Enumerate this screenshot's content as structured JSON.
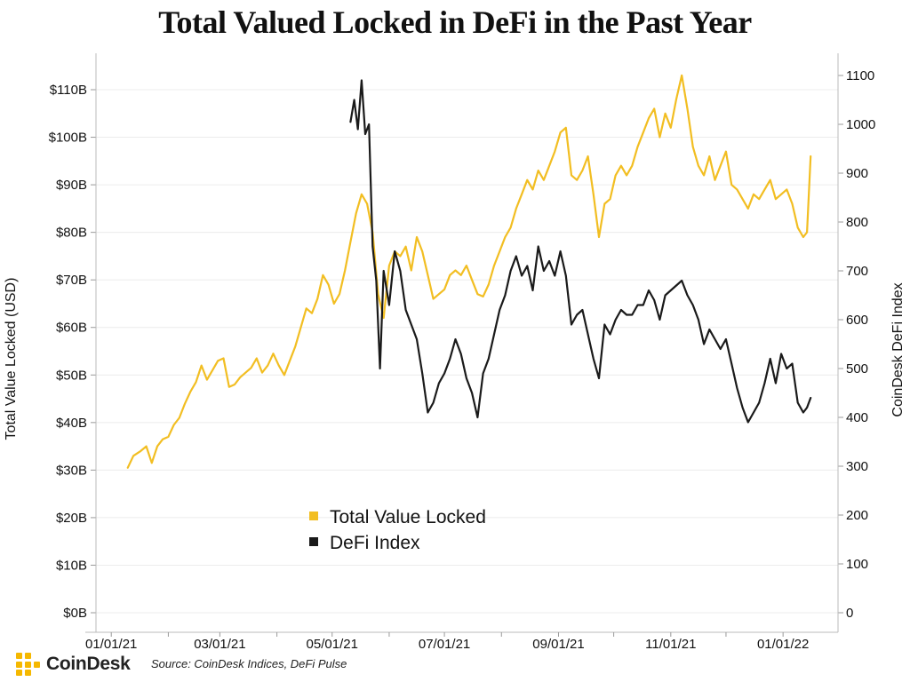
{
  "title": "Total Valued Locked in DeFi in the Past Year",
  "source": "Source: CoinDesk Indices, DeFi Pulse",
  "brand": {
    "name": "CoinDesk",
    "icon": "coindesk-logo-icon",
    "color": "#F5B800"
  },
  "chart_data": {
    "type": "line",
    "title": "Total Valued Locked in DeFi in the Past Year",
    "ylabel": "Total Value Locked (USD)",
    "y2label": "CoinDesk DeFi Index",
    "xlim": [
      "2020-12-15",
      "2022-01-27"
    ],
    "ylim": [
      0,
      110
    ],
    "y2lim": [
      0,
      1100
    ],
    "x_ticks": [
      "01/01/21",
      "03/01/21",
      "05/01/21",
      "07/01/21",
      "09/01/21",
      "11/01/21",
      "01/01/22"
    ],
    "y_ticks": [
      "$0B",
      "$10B",
      "$20B",
      "$30B",
      "$40B",
      "$50B",
      "$60B",
      "$70B",
      "$80B",
      "$90B",
      "$100B",
      "$110B"
    ],
    "y2_ticks": [
      "0",
      "100",
      "200",
      "300",
      "400",
      "500",
      "600",
      "700",
      "800",
      "900",
      "1000",
      "1100"
    ],
    "grid": "horizontal",
    "legend_position": "center",
    "series": [
      {
        "name": "Total Value Locked",
        "axis": "left",
        "color": "#F2BE22",
        "points": [
          [
            "2021-01-10",
            30.5
          ],
          [
            "2021-01-13",
            33
          ],
          [
            "2021-01-17",
            34
          ],
          [
            "2021-01-20",
            35
          ],
          [
            "2021-01-23",
            31.5
          ],
          [
            "2021-01-26",
            35
          ],
          [
            "2021-01-29",
            36.5
          ],
          [
            "2021-02-01",
            37
          ],
          [
            "2021-02-04",
            39.5
          ],
          [
            "2021-02-07",
            41
          ],
          [
            "2021-02-10",
            44
          ],
          [
            "2021-02-13",
            46.5
          ],
          [
            "2021-02-16",
            48.5
          ],
          [
            "2021-02-19",
            52
          ],
          [
            "2021-02-22",
            49
          ],
          [
            "2021-02-25",
            51
          ],
          [
            "2021-02-28",
            53
          ],
          [
            "2021-03-03",
            53.5
          ],
          [
            "2021-03-06",
            47.5
          ],
          [
            "2021-03-09",
            48
          ],
          [
            "2021-03-12",
            49.5
          ],
          [
            "2021-03-15",
            50.5
          ],
          [
            "2021-03-18",
            51.5
          ],
          [
            "2021-03-21",
            53.5
          ],
          [
            "2021-03-24",
            50.5
          ],
          [
            "2021-03-27",
            52
          ],
          [
            "2021-03-30",
            54.5
          ],
          [
            "2021-04-02",
            52
          ],
          [
            "2021-04-05",
            50
          ],
          [
            "2021-04-08",
            53
          ],
          [
            "2021-04-11",
            56
          ],
          [
            "2021-04-14",
            60
          ],
          [
            "2021-04-17",
            64
          ],
          [
            "2021-04-20",
            63
          ],
          [
            "2021-04-23",
            66
          ],
          [
            "2021-04-26",
            71
          ],
          [
            "2021-04-29",
            69
          ],
          [
            "2021-05-02",
            65
          ],
          [
            "2021-05-05",
            67
          ],
          [
            "2021-05-08",
            72
          ],
          [
            "2021-05-11",
            78
          ],
          [
            "2021-05-14",
            84
          ],
          [
            "2021-05-17",
            88
          ],
          [
            "2021-05-20",
            86
          ],
          [
            "2021-05-23",
            80
          ],
          [
            "2021-05-26",
            67
          ],
          [
            "2021-05-29",
            62
          ],
          [
            "2021-06-01",
            73
          ],
          [
            "2021-06-04",
            76
          ],
          [
            "2021-06-07",
            75
          ],
          [
            "2021-06-10",
            77
          ],
          [
            "2021-06-13",
            72
          ],
          [
            "2021-06-16",
            79
          ],
          [
            "2021-06-19",
            76
          ],
          [
            "2021-06-22",
            71
          ],
          [
            "2021-06-25",
            66
          ],
          [
            "2021-06-28",
            67
          ],
          [
            "2021-07-01",
            68
          ],
          [
            "2021-07-04",
            71
          ],
          [
            "2021-07-07",
            72
          ],
          [
            "2021-07-10",
            71
          ],
          [
            "2021-07-13",
            73
          ],
          [
            "2021-07-16",
            70
          ],
          [
            "2021-07-19",
            67
          ],
          [
            "2021-07-22",
            66.5
          ],
          [
            "2021-07-25",
            69
          ],
          [
            "2021-07-28",
            73
          ],
          [
            "2021-07-31",
            76
          ],
          [
            "2021-08-03",
            79
          ],
          [
            "2021-08-06",
            81
          ],
          [
            "2021-08-09",
            85
          ],
          [
            "2021-08-12",
            88
          ],
          [
            "2021-08-15",
            91
          ],
          [
            "2021-08-18",
            89
          ],
          [
            "2021-08-21",
            93
          ],
          [
            "2021-08-24",
            91
          ],
          [
            "2021-08-27",
            94
          ],
          [
            "2021-08-30",
            97
          ],
          [
            "2021-09-02",
            101
          ],
          [
            "2021-09-05",
            102
          ],
          [
            "2021-09-08",
            92
          ],
          [
            "2021-09-11",
            91
          ],
          [
            "2021-09-14",
            93
          ],
          [
            "2021-09-17",
            96
          ],
          [
            "2021-09-20",
            88
          ],
          [
            "2021-09-23",
            79
          ],
          [
            "2021-09-26",
            86
          ],
          [
            "2021-09-29",
            87
          ],
          [
            "2021-10-02",
            92
          ],
          [
            "2021-10-05",
            94
          ],
          [
            "2021-10-08",
            92
          ],
          [
            "2021-10-11",
            94
          ],
          [
            "2021-10-14",
            98
          ],
          [
            "2021-10-17",
            101
          ],
          [
            "2021-10-20",
            104
          ],
          [
            "2021-10-23",
            106
          ],
          [
            "2021-10-26",
            100
          ],
          [
            "2021-10-29",
            105
          ],
          [
            "2021-11-01",
            102
          ],
          [
            "2021-11-04",
            108
          ],
          [
            "2021-11-07",
            113
          ],
          [
            "2021-11-10",
            106
          ],
          [
            "2021-11-13",
            98
          ],
          [
            "2021-11-16",
            94
          ],
          [
            "2021-11-19",
            92
          ],
          [
            "2021-11-22",
            96
          ],
          [
            "2021-11-25",
            91
          ],
          [
            "2021-11-28",
            94
          ],
          [
            "2021-12-01",
            97
          ],
          [
            "2021-12-04",
            90
          ],
          [
            "2021-12-07",
            89
          ],
          [
            "2021-12-10",
            87
          ],
          [
            "2021-12-13",
            85
          ],
          [
            "2021-12-16",
            88
          ],
          [
            "2021-12-19",
            87
          ],
          [
            "2021-12-22",
            89
          ],
          [
            "2021-12-25",
            91
          ],
          [
            "2021-12-28",
            87
          ],
          [
            "2021-12-31",
            88
          ],
          [
            "2022-01-03",
            89
          ],
          [
            "2022-01-06",
            86
          ],
          [
            "2022-01-09",
            81
          ],
          [
            "2022-01-12",
            79
          ],
          [
            "2022-01-14",
            80
          ],
          [
            "2022-01-16",
            96
          ]
        ]
      },
      {
        "name": "DeFi Index",
        "axis": "right",
        "color": "#1A1A1A",
        "points": [
          [
            "2021-05-11",
            1005
          ],
          [
            "2021-05-13",
            1050
          ],
          [
            "2021-05-15",
            990
          ],
          [
            "2021-05-17",
            1090
          ],
          [
            "2021-05-19",
            980
          ],
          [
            "2021-05-21",
            1000
          ],
          [
            "2021-05-23",
            750
          ],
          [
            "2021-05-25",
            680
          ],
          [
            "2021-05-27",
            500
          ],
          [
            "2021-05-29",
            700
          ],
          [
            "2021-06-01",
            630
          ],
          [
            "2021-06-04",
            740
          ],
          [
            "2021-06-07",
            700
          ],
          [
            "2021-06-10",
            620
          ],
          [
            "2021-06-13",
            590
          ],
          [
            "2021-06-16",
            560
          ],
          [
            "2021-06-19",
            490
          ],
          [
            "2021-06-22",
            410
          ],
          [
            "2021-06-25",
            430
          ],
          [
            "2021-06-28",
            470
          ],
          [
            "2021-07-01",
            490
          ],
          [
            "2021-07-04",
            520
          ],
          [
            "2021-07-07",
            560
          ],
          [
            "2021-07-10",
            530
          ],
          [
            "2021-07-13",
            480
          ],
          [
            "2021-07-16",
            450
          ],
          [
            "2021-07-19",
            400
          ],
          [
            "2021-07-22",
            490
          ],
          [
            "2021-07-25",
            520
          ],
          [
            "2021-07-28",
            570
          ],
          [
            "2021-07-31",
            620
          ],
          [
            "2021-08-03",
            650
          ],
          [
            "2021-08-06",
            700
          ],
          [
            "2021-08-09",
            730
          ],
          [
            "2021-08-12",
            690
          ],
          [
            "2021-08-15",
            710
          ],
          [
            "2021-08-18",
            660
          ],
          [
            "2021-08-21",
            750
          ],
          [
            "2021-08-24",
            700
          ],
          [
            "2021-08-27",
            720
          ],
          [
            "2021-08-30",
            690
          ],
          [
            "2021-09-02",
            740
          ],
          [
            "2021-09-05",
            690
          ],
          [
            "2021-09-08",
            590
          ],
          [
            "2021-09-11",
            610
          ],
          [
            "2021-09-14",
            620
          ],
          [
            "2021-09-17",
            570
          ],
          [
            "2021-09-20",
            520
          ],
          [
            "2021-09-23",
            480
          ],
          [
            "2021-09-26",
            590
          ],
          [
            "2021-09-29",
            570
          ],
          [
            "2021-10-02",
            600
          ],
          [
            "2021-10-05",
            620
          ],
          [
            "2021-10-08",
            610
          ],
          [
            "2021-10-11",
            610
          ],
          [
            "2021-10-14",
            630
          ],
          [
            "2021-10-17",
            630
          ],
          [
            "2021-10-20",
            660
          ],
          [
            "2021-10-23",
            640
          ],
          [
            "2021-10-26",
            600
          ],
          [
            "2021-10-29",
            650
          ],
          [
            "2021-11-01",
            660
          ],
          [
            "2021-11-04",
            670
          ],
          [
            "2021-11-07",
            680
          ],
          [
            "2021-11-10",
            650
          ],
          [
            "2021-11-13",
            630
          ],
          [
            "2021-11-16",
            600
          ],
          [
            "2021-11-19",
            550
          ],
          [
            "2021-11-22",
            580
          ],
          [
            "2021-11-25",
            560
          ],
          [
            "2021-11-28",
            540
          ],
          [
            "2021-12-01",
            560
          ],
          [
            "2021-12-04",
            510
          ],
          [
            "2021-12-07",
            460
          ],
          [
            "2021-12-10",
            420
          ],
          [
            "2021-12-13",
            390
          ],
          [
            "2021-12-16",
            410
          ],
          [
            "2021-12-19",
            430
          ],
          [
            "2021-12-22",
            470
          ],
          [
            "2021-12-25",
            520
          ],
          [
            "2021-12-28",
            470
          ],
          [
            "2021-12-31",
            530
          ],
          [
            "2022-01-03",
            500
          ],
          [
            "2022-01-06",
            510
          ],
          [
            "2022-01-09",
            430
          ],
          [
            "2022-01-12",
            410
          ],
          [
            "2022-01-14",
            420
          ],
          [
            "2022-01-16",
            440
          ]
        ]
      }
    ]
  }
}
